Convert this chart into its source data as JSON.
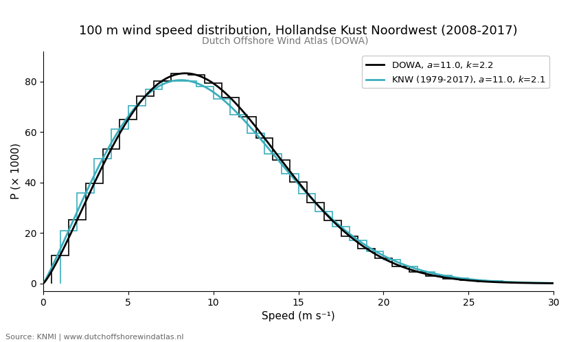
{
  "title": "100 m wind speed distribution, Hollandse Kust Noordwest (2008-2017)",
  "subtitle": "Dutch Offshore Wind Atlas (DOWA)",
  "xlabel": "Speed (m s⁻¹)",
  "ylabel": "P (× 1000)",
  "source": "Source: KNMI | www.dutchoffshorewindatlas.nl",
  "xlim": [
    0,
    30
  ],
  "ylim": [
    -3,
    92
  ],
  "xticks": [
    0,
    5,
    10,
    15,
    20,
    25,
    30
  ],
  "yticks": [
    0,
    20,
    40,
    60,
    80
  ],
  "dowa_color": "#000000",
  "knw_color": "#3aaebc",
  "dowa_a": 11.0,
  "dowa_k": 2.2,
  "knw_a": 11.0,
  "knw_k": 2.1,
  "legend_dowa": "DOWA, $a$=11.0, $k$=2.2",
  "legend_knw": "KNW (1979-2017), $a$=11.0, $k$=2.1",
  "background_color": "#ffffff",
  "plot_background": "#ffffff",
  "title_fontsize": 13,
  "subtitle_fontsize": 10,
  "label_fontsize": 11,
  "legend_fontsize": 9.5,
  "source_fontsize": 8
}
